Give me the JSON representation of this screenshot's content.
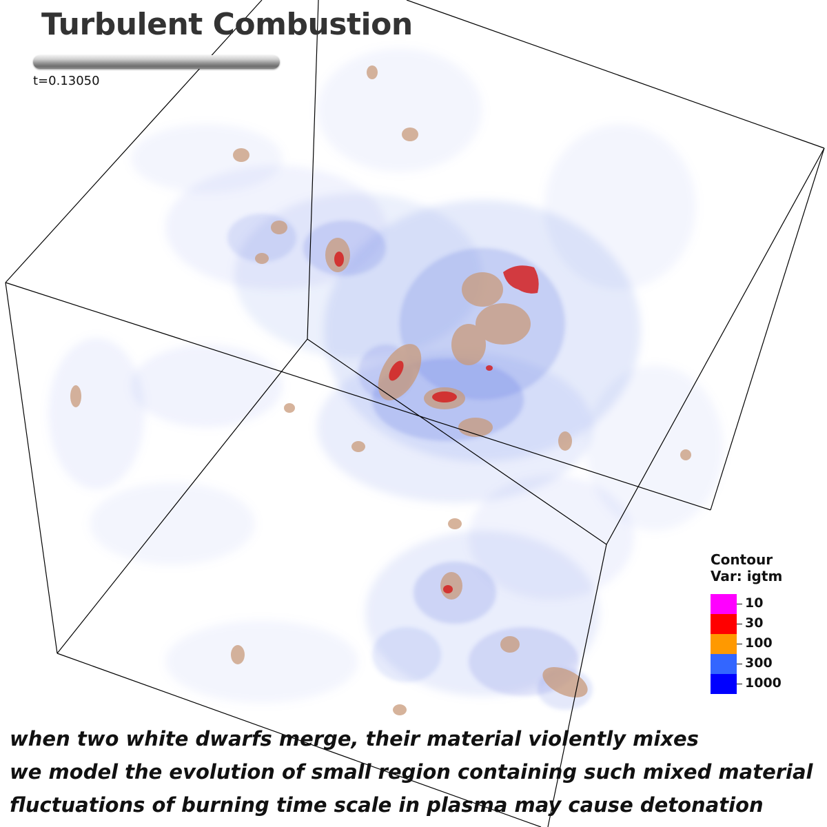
{
  "title": "Turbulent Combustion",
  "time_label": "t=0.13050",
  "legend": {
    "title_line1": "Contour",
    "title_line2": "Var: igtm",
    "items": [
      {
        "label": "10",
        "color": "#ff00ff"
      },
      {
        "label": "30",
        "color": "#ff0000"
      },
      {
        "label": "100",
        "color": "#ff9900"
      },
      {
        "label": "300",
        "color": "#3366ff"
      },
      {
        "label": "1000",
        "color": "#0000ff"
      }
    ]
  },
  "captions": [
    "when two white dwarfs merge, their material violently mixes",
    "we model the evolution of small region containing such mixed material",
    "fluctuations of burning time scale in plasma may cause detonation"
  ]
}
